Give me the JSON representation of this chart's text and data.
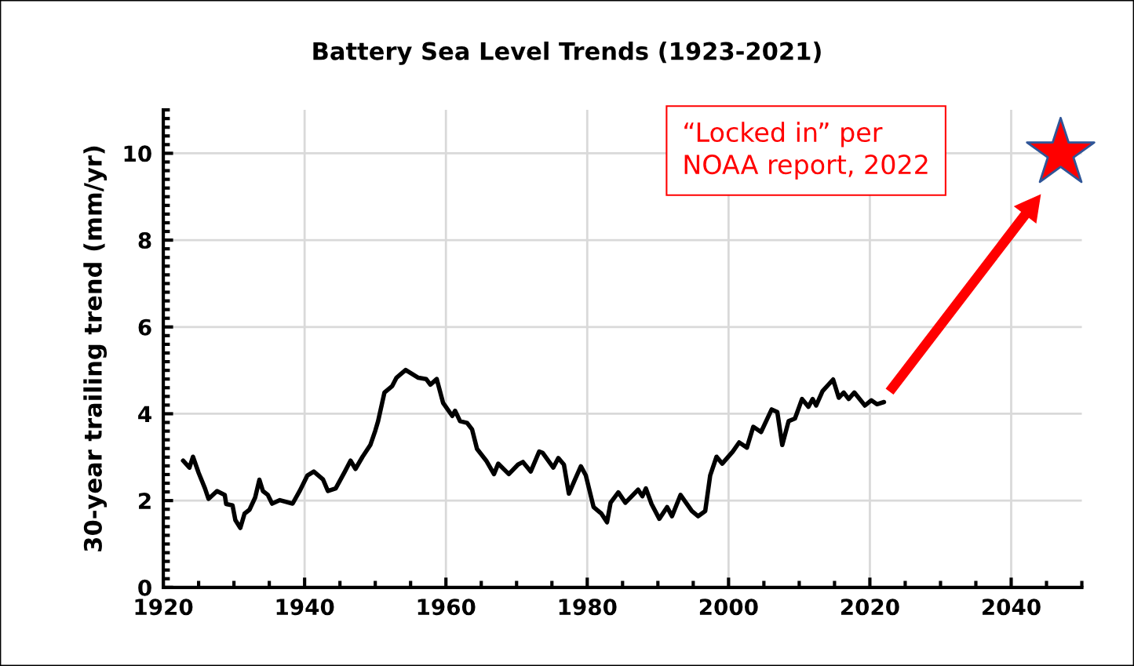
{
  "chart_data": {
    "type": "line",
    "title": "Battery Sea Level Trends (1923-2021)",
    "ylabel": "30-year trailing trend (mm/yr)",
    "series": [
      {
        "color": "#000000",
        "x": [
          1922.8,
          1923.7,
          1924.2,
          1925.0,
          1925.9,
          1926.4,
          1927.6,
          1928.7,
          1928.9,
          1929.8,
          1930.2,
          1930.9,
          1931.5,
          1932.2,
          1933.0,
          1933.6,
          1934.1,
          1934.8,
          1935.4,
          1936.5,
          1938.3,
          1939.3,
          1940.4,
          1941.3,
          1942.6,
          1943.3,
          1944.4,
          1945.7,
          1946.5,
          1947.2,
          1948.2,
          1949.3,
          1950.0,
          1950.4,
          1951.3,
          1952.4,
          1953.0,
          1954.3,
          1956.1,
          1957.2,
          1957.8,
          1958.7,
          1959.6,
          1960.9,
          1961.3,
          1962.0,
          1963.0,
          1963.7,
          1964.4,
          1965.7,
          1966.8,
          1967.4,
          1968.9,
          1970.2,
          1970.9,
          1972.0,
          1973.2,
          1973.7,
          1975.2,
          1975.9,
          1976.7,
          1977.4,
          1978.2,
          1979.1,
          1979.8,
          1980.9,
          1982.0,
          1982.8,
          1983.3,
          1984.4,
          1985.4,
          1987.2,
          1987.8,
          1988.3,
          1989.1,
          1990.2,
          1991.3,
          1992.0,
          1993.2,
          1994.8,
          1995.7,
          1996.7,
          1997.4,
          1998.3,
          1999.1,
          2000.6,
          2001.5,
          2002.6,
          2003.5,
          2004.6,
          2006.1,
          2006.9,
          2007.6,
          2008.5,
          2009.4,
          2010.4,
          2011.3,
          2011.9,
          2012.4,
          2013.3,
          2014.8,
          2015.6,
          2016.3,
          2017.0,
          2017.8,
          2019.3,
          2020.2,
          2021.0,
          2022.0
        ],
        "values": [
          2.92,
          2.76,
          3.01,
          2.64,
          2.28,
          2.04,
          2.22,
          2.13,
          1.92,
          1.89,
          1.55,
          1.37,
          1.7,
          1.79,
          2.07,
          2.48,
          2.22,
          2.13,
          1.93,
          2.01,
          1.93,
          2.22,
          2.58,
          2.67,
          2.49,
          2.22,
          2.28,
          2.67,
          2.92,
          2.73,
          3.01,
          3.28,
          3.61,
          3.83,
          4.49,
          4.64,
          4.83,
          5.01,
          4.83,
          4.8,
          4.67,
          4.8,
          4.25,
          3.95,
          4.07,
          3.83,
          3.79,
          3.64,
          3.19,
          2.92,
          2.61,
          2.85,
          2.61,
          2.83,
          2.89,
          2.67,
          3.13,
          3.1,
          2.76,
          2.98,
          2.83,
          2.16,
          2.46,
          2.79,
          2.58,
          1.85,
          1.7,
          1.5,
          1.95,
          2.19,
          1.95,
          2.25,
          2.1,
          2.28,
          1.92,
          1.58,
          1.85,
          1.64,
          2.13,
          1.76,
          1.64,
          1.76,
          2.58,
          3.01,
          2.85,
          3.13,
          3.34,
          3.22,
          3.7,
          3.58,
          4.1,
          4.04,
          3.28,
          3.83,
          3.89,
          4.34,
          4.16,
          4.34,
          4.19,
          4.52,
          4.79,
          4.37,
          4.49,
          4.34,
          4.49,
          4.19,
          4.31,
          4.22,
          4.27
        ]
      },
      {
        "type": "scatter",
        "color": "#ff0000",
        "marker": "star",
        "x": [
          2047
        ],
        "values": [
          10
        ]
      }
    ],
    "annotations": [
      "“Locked in” per\nNOAA report, 2022"
    ],
    "xlim": [
      1920,
      2050
    ],
    "xticks": [
      1920,
      {
        "value": 1925,
        "label": null
      },
      {
        "value": 1930,
        "label": null
      },
      {
        "value": 1935,
        "label": null
      },
      1940,
      {
        "value": 1945,
        "label": null
      },
      {
        "value": 1950,
        "label": null
      },
      {
        "value": 1955,
        "label": null
      },
      1960,
      {
        "value": 1965,
        "label": null
      },
      {
        "value": 1970,
        "label": null
      },
      {
        "value": 1975,
        "label": null
      },
      1980,
      {
        "value": 1985,
        "label": null
      },
      {
        "value": 1990,
        "label": null
      },
      {
        "value": 1995,
        "label": null
      },
      2000,
      {
        "value": 2005,
        "label": null
      },
      {
        "value": 2010,
        "label": null
      },
      {
        "value": 2015,
        "label": null
      },
      2020,
      {
        "value": 2025,
        "label": null
      },
      {
        "value": 2030,
        "label": null
      },
      {
        "value": 2035,
        "label": null
      },
      2040,
      {
        "value": 2045,
        "label": null
      },
      {
        "value": 2050,
        "label": null
      }
    ],
    "ylim": [
      0,
      11
    ],
    "yticks": [
      0,
      {
        "value": 0.2,
        "label": null
      },
      {
        "value": 0.4,
        "label": null
      },
      {
        "value": 0.6,
        "label": null
      },
      {
        "value": 0.8,
        "label": null
      },
      {
        "value": 1,
        "label": null
      },
      {
        "value": 1.2,
        "label": null
      },
      {
        "value": 1.4,
        "label": null
      },
      {
        "value": 1.6,
        "label": null
      },
      {
        "value": 1.8,
        "label": null
      },
      2,
      {
        "value": 2.2,
        "label": null
      },
      {
        "value": 2.4,
        "label": null
      },
      {
        "value": 2.6,
        "label": null
      },
      {
        "value": 2.8,
        "label": null
      },
      {
        "value": 3,
        "label": null
      },
      {
        "value": 3.2,
        "label": null
      },
      {
        "value": 3.4,
        "label": null
      },
      {
        "value": 3.6,
        "label": null
      },
      {
        "value": 3.8,
        "label": null
      },
      4,
      {
        "value": 4.2,
        "label": null
      },
      {
        "value": 4.4,
        "label": null
      },
      {
        "value": 4.6,
        "label": null
      },
      {
        "value": 4.8,
        "label": null
      },
      {
        "value": 5,
        "label": null
      },
      {
        "value": 5.2,
        "label": null
      },
      {
        "value": 5.4,
        "label": null
      },
      {
        "value": 5.6,
        "label": null
      },
      {
        "value": 5.8,
        "label": null
      },
      6,
      {
        "value": 6.2,
        "label": null
      },
      {
        "value": 6.4,
        "label": null
      },
      {
        "value": 6.6,
        "label": null
      },
      {
        "value": 6.8,
        "label": null
      },
      {
        "value": 7,
        "label": null
      },
      {
        "value": 7.2,
        "label": null
      },
      {
        "value": 7.4,
        "label": null
      },
      {
        "value": 7.6,
        "label": null
      },
      {
        "value": 7.8,
        "label": null
      },
      8,
      {
        "value": 8.2,
        "label": null
      },
      {
        "value": 8.4,
        "label": null
      },
      {
        "value": 8.6,
        "label": null
      },
      {
        "value": 8.8,
        "label": null
      },
      {
        "value": 9,
        "label": null
      },
      {
        "value": 9.2,
        "label": null
      },
      {
        "value": 9.4,
        "label": null
      },
      {
        "value": 9.6,
        "label": null
      },
      {
        "value": 9.8,
        "label": null
      },
      10,
      {
        "value": 10.2,
        "label": null
      },
      {
        "value": 10.4,
        "label": null
      },
      {
        "value": 10.6,
        "label": null
      },
      {
        "value": 10.8,
        "label": null
      },
      {
        "value": 11,
        "label": null
      }
    ],
    "grid": true,
    "marker": "none",
    "line_style": "solid",
    "legend": false
  }
}
